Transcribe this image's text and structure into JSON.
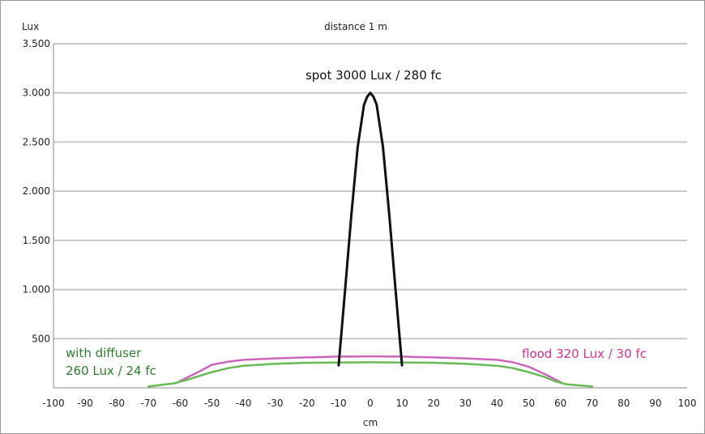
{
  "chart_data": {
    "type": "line",
    "title": "distance 1 m",
    "xlabel": "cm",
    "ylabel": "Lux",
    "xlim": [
      -100,
      100
    ],
    "ylim": [
      0,
      3500
    ],
    "x_ticks": [
      -100,
      -90,
      -80,
      -70,
      -60,
      -50,
      -40,
      -30,
      -20,
      -10,
      0,
      10,
      20,
      30,
      40,
      50,
      60,
      70,
      80,
      90,
      100
    ],
    "y_ticks": [
      500,
      1000,
      1500,
      2000,
      2500,
      3000,
      3500
    ],
    "y_tick_labels": [
      "500",
      "1.000",
      "1.500",
      "2.000",
      "2.500",
      "3.000",
      "3.500"
    ],
    "grid": "horizontal",
    "series": [
      {
        "key": "spot",
        "color": "#111111",
        "x": [
          -10,
          -8,
          -6,
          -4,
          -2,
          -1,
          0,
          1,
          2,
          4,
          6,
          8,
          10
        ],
        "y": [
          230,
          980,
          1750,
          2450,
          2880,
          2960,
          3000,
          2960,
          2880,
          2450,
          1750,
          980,
          230
        ]
      },
      {
        "key": "flood",
        "color": "#cc66bb",
        "x": [
          -60,
          -55,
          -50,
          -45,
          -40,
          -30,
          -20,
          -10,
          0,
          10,
          20,
          30,
          40,
          45,
          50,
          55,
          60
        ],
        "y": [
          70,
          150,
          235,
          265,
          285,
          300,
          310,
          318,
          320,
          318,
          310,
          300,
          285,
          260,
          215,
          140,
          60
        ]
      },
      {
        "key": "diffuser",
        "color": "#66bb55",
        "x": [
          -70,
          -62,
          -58,
          -55,
          -50,
          -45,
          -40,
          -30,
          -20,
          -10,
          0,
          10,
          20,
          30,
          40,
          45,
          50,
          55,
          58,
          62,
          70
        ],
        "y": [
          15,
          45,
          80,
          110,
          160,
          200,
          225,
          245,
          255,
          258,
          260,
          258,
          255,
          245,
          225,
          200,
          160,
          110,
          70,
          35,
          15
        ]
      }
    ],
    "annotations": [
      {
        "key": "spot",
        "text": "spot 3000 Lux / 280 fc",
        "color": "#111111"
      },
      {
        "key": "flood",
        "text": "flood 320 Lux / 30 fc",
        "color": "#e0308a"
      },
      {
        "key": "diffuser",
        "lines": [
          "with diffuser",
          "260 Lux / 24 fc"
        ],
        "color": "#2e7d2e"
      }
    ]
  }
}
